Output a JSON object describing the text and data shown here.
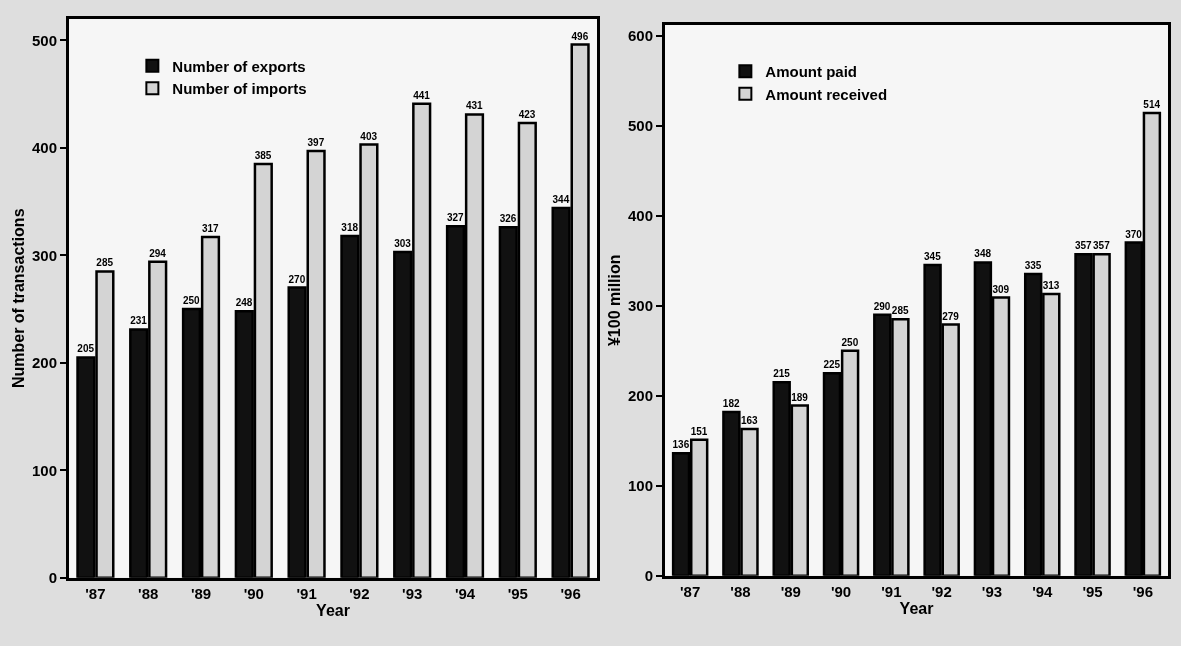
{
  "chart_data": [
    {
      "type": "bar",
      "xlabel": "Year",
      "ylabel": "Number of transactions",
      "categories": [
        "'87",
        "'88",
        "'89",
        "'90",
        "'91",
        "'92",
        "'93",
        "'94",
        "'95",
        "'96"
      ],
      "series": [
        {
          "name": "Number of exports",
          "color": "#111111",
          "values": [
            205,
            231,
            250,
            248,
            270,
            318,
            303,
            327,
            326,
            344
          ]
        },
        {
          "name": "Number of imports",
          "color": "#d4d4d4",
          "values": [
            285,
            294,
            317,
            385,
            397,
            403,
            441,
            431,
            423,
            496
          ]
        }
      ],
      "ylim": [
        0,
        520
      ],
      "yticks": [
        0,
        100,
        200,
        300,
        400,
        500
      ],
      "data_labels": true,
      "legend": "top left"
    },
    {
      "type": "bar",
      "xlabel": "Year",
      "ylabel": "¥100 million",
      "categories": [
        "'87",
        "'88",
        "'89",
        "'90",
        "'91",
        "'92",
        "'93",
        "'94",
        "'95",
        "'96"
      ],
      "series": [
        {
          "name": "Amount paid",
          "color": "#111111",
          "values": [
            136,
            182,
            215,
            225,
            290,
            345,
            348,
            335,
            357,
            370
          ]
        },
        {
          "name": "Amount received",
          "color": "#d4d4d4",
          "values": [
            151,
            163,
            189,
            250,
            285,
            279,
            309,
            313,
            357,
            514
          ]
        }
      ],
      "ylim": [
        0,
        612
      ],
      "yticks": [
        0,
        100,
        200,
        300,
        400,
        500,
        600
      ],
      "data_labels": true,
      "legend": "top left"
    }
  ]
}
